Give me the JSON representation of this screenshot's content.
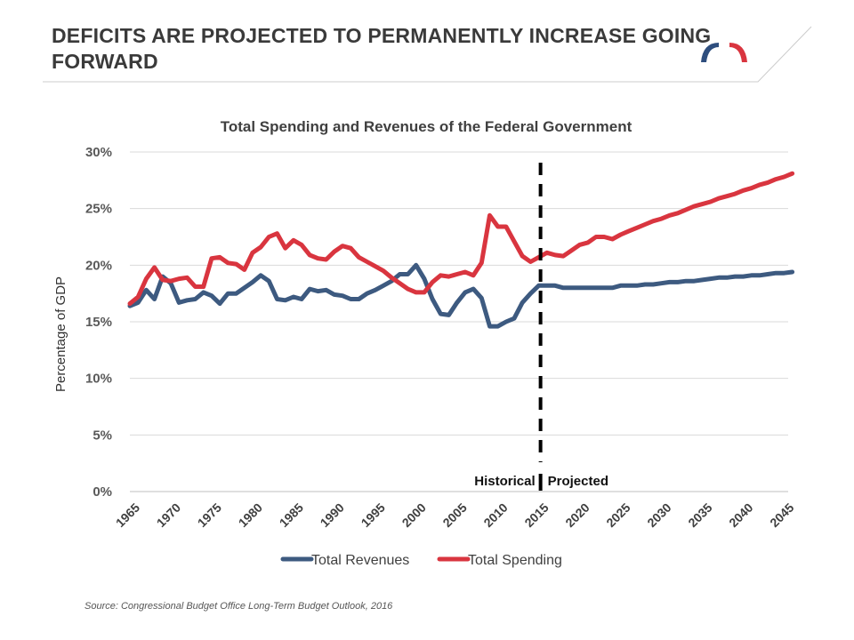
{
  "header": {
    "title": "DEFICITS ARE PROJECTED TO PERMANENTLY INCREASE GOING FORWARD"
  },
  "logo": {
    "icon": "arch-logo-icon",
    "colors": [
      "#2e4e7e",
      "#d9353f"
    ]
  },
  "source": "Source: Congressional Budget Office Long-Term Budget Outlook, 2016",
  "chart_data": {
    "type": "line",
    "title": "Total Spending and Revenues of the Federal Government",
    "ylabel": "Percentage of GDP",
    "xlabel": "",
    "xlim": [
      1965,
      2046
    ],
    "ylim": [
      0,
      30
    ],
    "yticks": [
      "0%",
      "5%",
      "10%",
      "15%",
      "20%",
      "25%",
      "30%"
    ],
    "xticks": [
      "1965",
      "1970",
      "1975",
      "1980",
      "1985",
      "1990",
      "1995",
      "2000",
      "2005",
      "2010",
      "2015",
      "2020",
      "2025",
      "2030",
      "2035",
      "2040",
      "2045"
    ],
    "grid": "horizontal",
    "legend": "bottom",
    "divider": {
      "x": 2015,
      "left_label": "Historical",
      "right_label": "Projected"
    },
    "series": [
      {
        "name": "Total Revenues",
        "color": "#3d5a80",
        "x": [
          1965,
          1966,
          1967,
          1968,
          1969,
          1970,
          1971,
          1972,
          1973,
          1974,
          1975,
          1976,
          1977,
          1978,
          1979,
          1980,
          1981,
          1982,
          1983,
          1984,
          1985,
          1986,
          1987,
          1988,
          1989,
          1990,
          1991,
          1992,
          1993,
          1994,
          1995,
          1996,
          1997,
          1998,
          1999,
          2000,
          2001,
          2002,
          2003,
          2004,
          2005,
          2006,
          2007,
          2008,
          2009,
          2010,
          2011,
          2012,
          2013,
          2014,
          2015,
          2016,
          2017,
          2018,
          2019,
          2020,
          2021,
          2022,
          2023,
          2024,
          2025,
          2026,
          2027,
          2028,
          2029,
          2030,
          2031,
          2032,
          2033,
          2034,
          2035,
          2036,
          2037,
          2038,
          2039,
          2040,
          2041,
          2042,
          2043,
          2044,
          2045,
          2046
        ],
        "values": [
          16.4,
          16.7,
          17.8,
          17.0,
          19.0,
          18.4,
          16.7,
          16.9,
          17.0,
          17.6,
          17.3,
          16.6,
          17.5,
          17.5,
          18.0,
          18.5,
          19.1,
          18.6,
          17.0,
          16.9,
          17.2,
          17.0,
          17.9,
          17.7,
          17.8,
          17.4,
          17.3,
          17.0,
          17.0,
          17.5,
          17.8,
          18.2,
          18.6,
          19.2,
          19.2,
          20.0,
          18.8,
          17.0,
          15.7,
          15.6,
          16.7,
          17.6,
          17.9,
          17.1,
          14.6,
          14.6,
          15.0,
          15.3,
          16.7,
          17.5,
          18.2,
          18.2,
          18.2,
          18.0,
          18.0,
          18.0,
          18.0,
          18.0,
          18.0,
          18.0,
          18.2,
          18.2,
          18.2,
          18.3,
          18.3,
          18.4,
          18.5,
          18.5,
          18.6,
          18.6,
          18.7,
          18.8,
          18.9,
          18.9,
          19.0,
          19.0,
          19.1,
          19.1,
          19.2,
          19.3,
          19.3,
          19.4
        ]
      },
      {
        "name": "Total Spending",
        "color": "#d9353f",
        "x": [
          1965,
          1966,
          1967,
          1968,
          1969,
          1970,
          1971,
          1972,
          1973,
          1974,
          1975,
          1976,
          1977,
          1978,
          1979,
          1980,
          1981,
          1982,
          1983,
          1984,
          1985,
          1986,
          1987,
          1988,
          1989,
          1990,
          1991,
          1992,
          1993,
          1994,
          1995,
          1996,
          1997,
          1998,
          1999,
          2000,
          2001,
          2002,
          2003,
          2004,
          2005,
          2006,
          2007,
          2008,
          2009,
          2010,
          2011,
          2012,
          2013,
          2014,
          2015,
          2016,
          2017,
          2018,
          2019,
          2020,
          2021,
          2022,
          2023,
          2024,
          2025,
          2026,
          2027,
          2028,
          2029,
          2030,
          2031,
          2032,
          2033,
          2034,
          2035,
          2036,
          2037,
          2038,
          2039,
          2040,
          2041,
          2042,
          2043,
          2044,
          2045,
          2046
        ],
        "values": [
          16.6,
          17.2,
          18.8,
          19.8,
          18.7,
          18.6,
          18.8,
          18.9,
          18.1,
          18.1,
          20.6,
          20.7,
          20.2,
          20.1,
          19.6,
          21.1,
          21.6,
          22.5,
          22.8,
          21.5,
          22.2,
          21.8,
          20.9,
          20.6,
          20.5,
          21.2,
          21.7,
          21.5,
          20.7,
          20.3,
          19.9,
          19.5,
          18.9,
          18.4,
          17.9,
          17.6,
          17.6,
          18.5,
          19.1,
          19.0,
          19.2,
          19.4,
          19.1,
          20.2,
          24.4,
          23.4,
          23.4,
          22.1,
          20.8,
          20.3,
          20.7,
          21.1,
          20.9,
          20.8,
          21.3,
          21.8,
          22.0,
          22.5,
          22.5,
          22.3,
          22.7,
          23.0,
          23.3,
          23.6,
          23.9,
          24.1,
          24.4,
          24.6,
          24.9,
          25.2,
          25.4,
          25.6,
          25.9,
          26.1,
          26.3,
          26.6,
          26.8,
          27.1,
          27.3,
          27.6,
          27.8,
          28.1
        ]
      }
    ]
  }
}
